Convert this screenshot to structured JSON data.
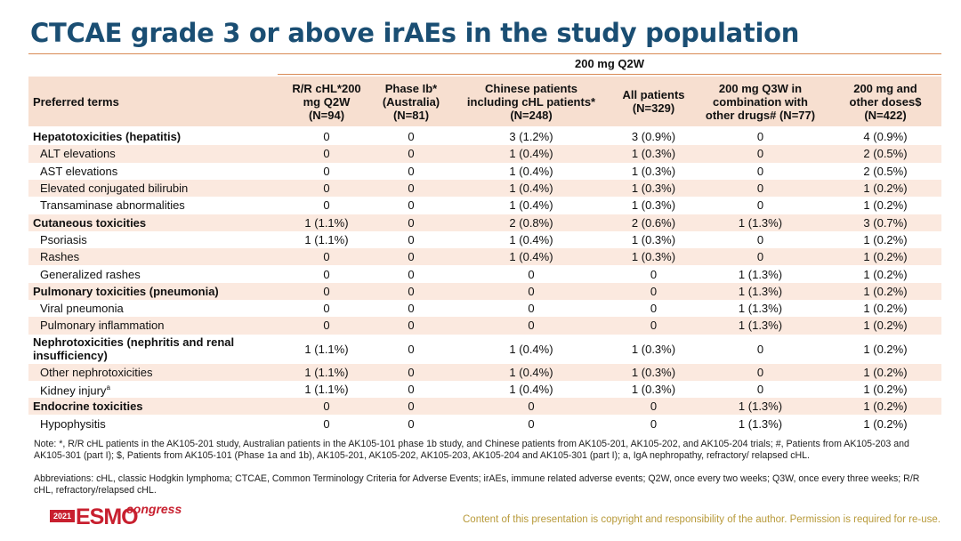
{
  "title": "CTCAE grade 3 or above irAEs in the study population",
  "group_header": "200 mg Q2W",
  "columns": [
    "Preferred terms",
    "R/R cHL*200\nmg Q2W\n(N=94)",
    "Phase Ib*\n(Australia)\n(N=81)",
    "Chinese patients\nincluding cHL patients*\n(N=248)",
    "All patients\n(N=329)",
    "200 mg Q3W in\ncombination with\nother drugs# (N=77)",
    "200 mg and\nother doses$\n(N=422)"
  ],
  "rows": [
    {
      "term": "Hepatotoxicities (hepatitis)",
      "bold": true,
      "indent": false,
      "values": [
        "0",
        "0",
        "3 (1.2%)",
        "3 (0.9%)",
        "0",
        "4 (0.9%)"
      ]
    },
    {
      "term": "ALT elevations",
      "bold": false,
      "indent": true,
      "values": [
        "0",
        "0",
        "1 (0.4%)",
        "1 (0.3%)",
        "0",
        "2 (0.5%)"
      ]
    },
    {
      "term": "AST elevations",
      "bold": false,
      "indent": true,
      "values": [
        "0",
        "0",
        "1 (0.4%)",
        "1 (0.3%)",
        "0",
        "2 (0.5%)"
      ]
    },
    {
      "term": "Elevated conjugated bilirubin",
      "bold": false,
      "indent": true,
      "values": [
        "0",
        "0",
        "1 (0.4%)",
        "1 (0.3%)",
        "0",
        "1 (0.2%)"
      ]
    },
    {
      "term": "Transaminase abnormalities",
      "bold": false,
      "indent": true,
      "values": [
        "0",
        "0",
        "1 (0.4%)",
        "1 (0.3%)",
        "0",
        "1 (0.2%)"
      ]
    },
    {
      "term": "Cutaneous toxicities",
      "bold": true,
      "indent": false,
      "values": [
        "1 (1.1%)",
        "0",
        "2 (0.8%)",
        "2 (0.6%)",
        "1 (1.3%)",
        "3 (0.7%)"
      ]
    },
    {
      "term": "Psoriasis",
      "bold": false,
      "indent": true,
      "values": [
        "1 (1.1%)",
        "0",
        "1 (0.4%)",
        "1 (0.3%)",
        "0",
        "1 (0.2%)"
      ]
    },
    {
      "term": "Rashes",
      "bold": false,
      "indent": true,
      "values": [
        "0",
        "0",
        "1 (0.4%)",
        "1 (0.3%)",
        "0",
        "1 (0.2%)"
      ]
    },
    {
      "term": "Generalized rashes",
      "bold": false,
      "indent": true,
      "values": [
        "0",
        "0",
        "0",
        "0",
        "1 (1.3%)",
        "1 (0.2%)"
      ]
    },
    {
      "term": "Pulmonary toxicities (pneumonia)",
      "bold": true,
      "indent": false,
      "values": [
        "0",
        "0",
        "0",
        "0",
        "1 (1.3%)",
        "1 (0.2%)"
      ]
    },
    {
      "term": "Viral pneumonia",
      "bold": false,
      "indent": true,
      "values": [
        "0",
        "0",
        "0",
        "0",
        "1 (1.3%)",
        "1 (0.2%)"
      ]
    },
    {
      "term": "Pulmonary inflammation",
      "bold": false,
      "indent": true,
      "values": [
        "0",
        "0",
        "0",
        "0",
        "1 (1.3%)",
        "1 (0.2%)"
      ]
    },
    {
      "term": "Nephrotoxicities (nephritis and renal insufficiency)",
      "bold": true,
      "indent": false,
      "tall": true,
      "values": [
        "1 (1.1%)",
        "0",
        "1 (0.4%)",
        "1 (0.3%)",
        "0",
        "1 (0.2%)"
      ]
    },
    {
      "term": "Other nephrotoxicities",
      "bold": false,
      "indent": true,
      "values": [
        "1 (1.1%)",
        "0",
        "1 (0.4%)",
        "1 (0.3%)",
        "0",
        "1 (0.2%)"
      ]
    },
    {
      "term": "Kidney injury",
      "sup": "a",
      "bold": false,
      "indent": true,
      "values": [
        "1 (1.1%)",
        "0",
        "1 (0.4%)",
        "1 (0.3%)",
        "0",
        "1 (0.2%)"
      ]
    },
    {
      "term": "Endocrine toxicities",
      "bold": true,
      "indent": false,
      "values": [
        "0",
        "0",
        "0",
        "0",
        "1 (1.3%)",
        "1 (0.2%)"
      ]
    },
    {
      "term": "Hypophysitis",
      "bold": false,
      "indent": true,
      "values": [
        "0",
        "0",
        "0",
        "0",
        "1 (1.3%)",
        "1 (0.2%)"
      ]
    }
  ],
  "notes": [
    "Note: *, R/R cHL patients in the AK105-201 study, Australian patients in the AK105-101 phase 1b study, and Chinese patients from AK105-201, AK105-202, and AK105-204 trials; #, Patients from AK105-203 and AK105-301 (part I); $, Patients from AK105-101 (Phase 1a and 1b), AK105-201, AK105-202, AK105-203, AK105-204 and AK105-301 (part I); a, IgA nephropathy, refractory/ relapsed cHL.",
    "Abbreviations: cHL, classic Hodgkin lymphoma; CTCAE, Common Terminology Criteria for Adverse Events; irAEs, immune related adverse events; Q2W, once every two weeks; Q3W, once every three weeks; R/R cHL, refractory/relapsed cHL."
  ],
  "logo": {
    "year": "2021",
    "name": "ESMO",
    "suffix": "congress"
  },
  "copyright": "Content of this presentation is copyright and responsibility of the author. Permission is required for re-use.",
  "colors": {
    "title": "#1a4e73",
    "header_bg": "#f7dfd0",
    "stripe_bg": "#fbe9df",
    "rule": "#d98a55",
    "logo_red": "#c8202f"
  }
}
